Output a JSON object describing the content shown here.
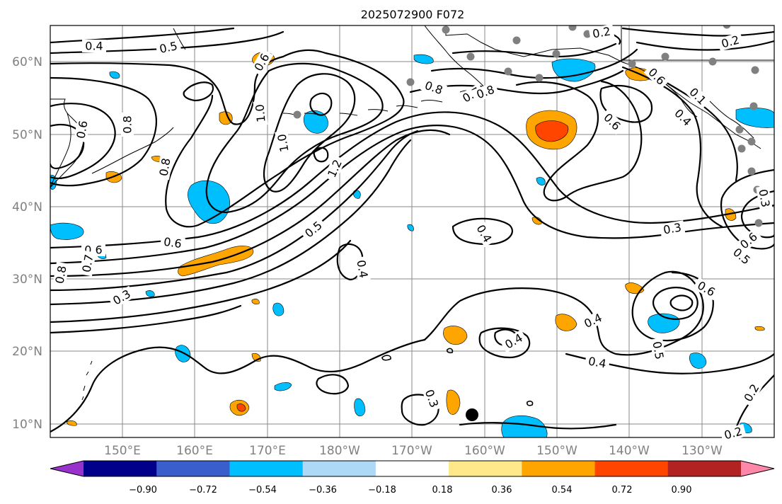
{
  "title": "2025072900 F072",
  "lat_labels": [
    "60°N",
    "50°N",
    "40°N",
    "30°N",
    "20°N",
    "10°N"
  ],
  "lon_labels": [
    "150°E",
    "160°E",
    "170°E",
    "180°W",
    "170°W",
    "160°W",
    "150°W",
    "140°W",
    "130°W"
  ],
  "colorbar": {
    "ticks": [
      "−0.90",
      "−0.72",
      "−0.54",
      "−0.36",
      "−0.18",
      "0.18",
      "0.36",
      "0.54",
      "0.72",
      "0.90"
    ],
    "colors": [
      "#9932cc",
      "#00008b",
      "#3a5fcd",
      "#00bfff",
      "#add8f6",
      "#ffffff",
      "#ffe88a",
      "#ffa500",
      "#ff4500",
      "#b22222",
      "#ff88aa"
    ]
  },
  "contour_labels": [
    "0.4",
    "0.5",
    "0.6",
    "0.2",
    "0.2",
    "0.8",
    "0.7",
    "0.6",
    "0.8",
    "0.8",
    "1.0",
    "1.0",
    "1.2",
    "0.5",
    "0.6",
    "0.6",
    "0.7",
    "0.8",
    "0.3",
    "0.4",
    "0.4",
    "0.3",
    "0.4",
    "0.4",
    "0.3",
    "0.3",
    "0.6",
    "0.5",
    "0.6",
    "0.5",
    "0.2",
    "0.2",
    "0.6",
    "0.4",
    "0.6",
    "0.4",
    "0.1",
    "0.8"
  ],
  "colors": {
    "grid": "#888888",
    "tick_text": "#808080",
    "dots": "#808080"
  },
  "icons": {
    "storm_marker": "filled-circle",
    "station_dots": "gray-circle"
  }
}
